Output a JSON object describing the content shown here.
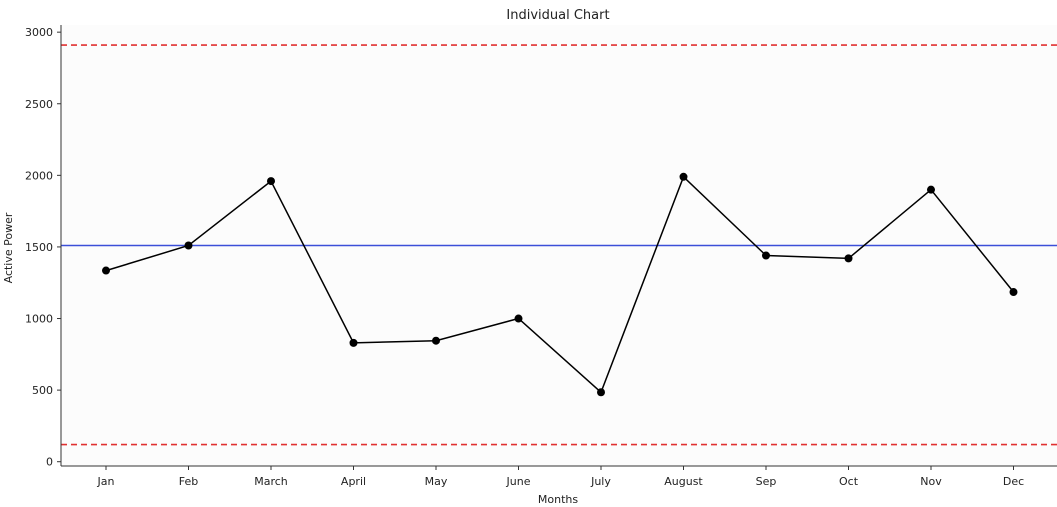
{
  "chart_data": {
    "type": "line",
    "title": "Individual Chart",
    "xlabel": "Months",
    "ylabel": "Active Power",
    "categories": [
      "Jan",
      "Feb",
      "March",
      "April",
      "May",
      "June",
      "July",
      "August",
      "Sep",
      "Oct",
      "Nov",
      "Dec"
    ],
    "series": [
      {
        "values": [
          1335,
          1510,
          1960,
          830,
          845,
          1000,
          485,
          1990,
          1440,
          1420,
          1900,
          1185
        ],
        "color": "#000000"
      }
    ],
    "reference_lines": [
      {
        "value": 2910,
        "color": "#e03131",
        "style": "dashed"
      },
      {
        "value": 1510,
        "color": "#3b4fd8",
        "style": "solid"
      },
      {
        "value": 120,
        "color": "#e03131",
        "style": "dashed"
      }
    ],
    "yticks": [
      0,
      500,
      1000,
      1500,
      2000,
      2500,
      3000
    ],
    "ylim": [
      -30,
      3050
    ],
    "grid": false,
    "plot_background": "#fcfcfc"
  }
}
